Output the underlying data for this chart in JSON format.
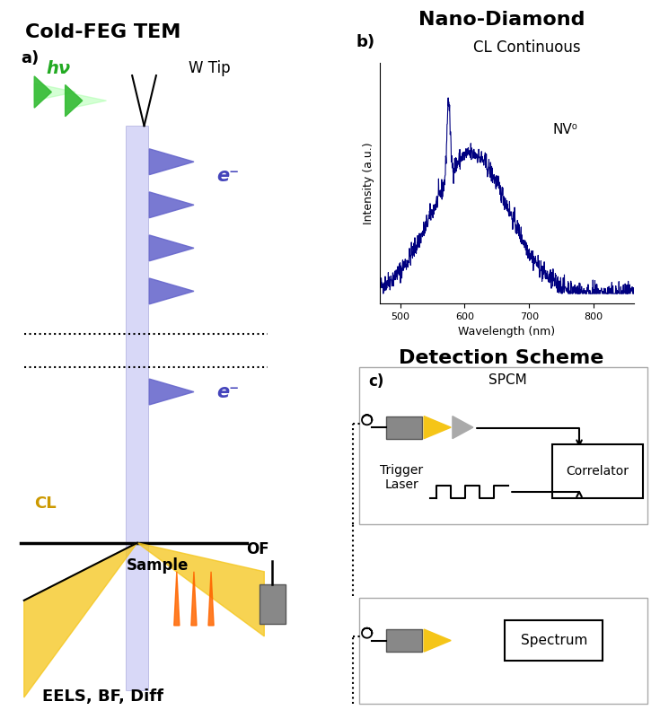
{
  "title_left": "Cold-FEG TEM",
  "title_right": "Nano-Diamond",
  "title_detection": "Detection Scheme",
  "label_a": "a)",
  "label_b": "b)",
  "label_c": "c)",
  "label_hv": "hν",
  "label_wtip": "W Tip",
  "label_eminus_top": "e⁻",
  "label_eminus_mid": "e⁻",
  "label_cl": "CL",
  "label_of": "OF",
  "label_sample": "Sample",
  "label_eels": "EELS, BF, Diff",
  "label_cl_cont": "CL Continuous",
  "label_nv0": "NV⁰",
  "label_intensity": "Intensity (a.u.)",
  "label_wavelength": "Wavelength (nm)",
  "label_spcm": "SPCM",
  "label_correlator": "Correlator",
  "label_trigger": "Trigger\nLaser",
  "label_spectrum": "Spectrum",
  "spectrum_color": "#000080",
  "cl_color": "#f5c518",
  "green_dark": "#228822",
  "green_light": "#88ee88",
  "beam_fill": "#aaaadd",
  "beam_edge": "#8888cc",
  "arrow_blue": "#6666cc",
  "orange_color": "#ff6600",
  "gray_color": "#888888"
}
